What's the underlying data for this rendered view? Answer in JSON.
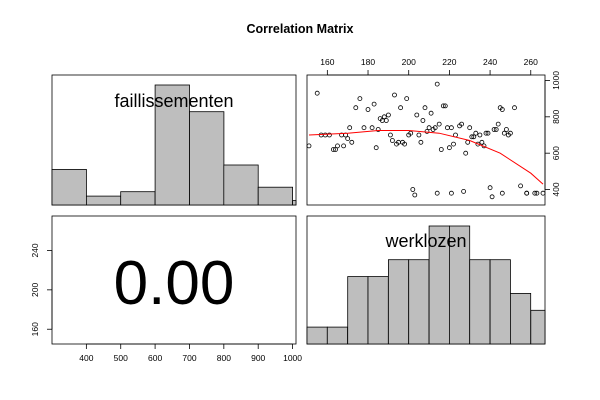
{
  "title": "Correlation Matrix",
  "chart_data": {
    "type": "pairs",
    "variables": [
      "faillissementen",
      "werklozen"
    ],
    "correlation": "0.00",
    "x_axis": {
      "ticks": [
        400,
        500,
        600,
        700,
        800,
        900,
        1000
      ],
      "range": [
        300,
        1010
      ]
    },
    "top_axis": {
      "ticks": [
        160,
        180,
        200,
        220,
        240,
        260
      ],
      "range": [
        150,
        267
      ]
    },
    "right_axis": {
      "ticks": [
        400,
        600,
        800,
        1000
      ],
      "range": [
        315,
        1030
      ]
    },
    "left_axis": {
      "ticks": [
        160,
        200,
        240
      ],
      "range": [
        145,
        275
      ]
    },
    "hist_faillissementen": {
      "breaks": [
        300,
        400,
        500,
        600,
        700,
        800,
        900,
        1000,
        1050
      ],
      "counts": [
        8,
        2,
        3,
        27,
        21,
        9,
        4,
        1
      ]
    },
    "hist_werklozen": {
      "breaks": [
        150,
        160,
        170,
        180,
        190,
        200,
        210,
        220,
        230,
        240,
        250,
        260,
        267
      ],
      "counts": [
        1,
        1,
        4,
        4,
        5,
        5,
        7,
        7,
        5,
        5,
        3,
        2
      ]
    },
    "scatter": {
      "x": [
        151,
        155,
        157,
        159,
        161,
        163,
        164,
        165,
        167,
        168,
        169,
        170,
        171,
        172,
        174,
        176,
        178,
        180,
        182,
        183,
        184,
        185,
        186,
        187,
        188,
        189,
        190,
        191,
        192,
        193,
        194,
        195,
        196,
        197,
        198,
        199,
        200,
        201,
        202,
        203,
        204,
        205,
        206,
        207,
        208,
        209,
        210,
        211,
        212,
        213,
        214,
        215,
        216,
        217,
        218,
        219,
        220,
        221,
        222,
        223,
        225,
        226,
        227,
        228,
        229,
        230,
        231,
        232,
        233,
        234,
        235,
        236,
        237,
        238,
        239,
        240,
        241,
        242,
        243,
        244,
        245,
        246,
        247,
        248,
        249,
        250,
        252,
        255,
        258,
        263,
        266,
        262,
        258,
        214,
        221,
        246
      ],
      "y": [
        640,
        930,
        700,
        700,
        700,
        620,
        620,
        640,
        700,
        640,
        700,
        680,
        740,
        660,
        850,
        900,
        740,
        840,
        740,
        870,
        630,
        730,
        790,
        780,
        800,
        780,
        810,
        700,
        670,
        920,
        650,
        660,
        850,
        660,
        650,
        900,
        700,
        710,
        400,
        370,
        810,
        700,
        660,
        780,
        850,
        720,
        740,
        820,
        730,
        740,
        980,
        760,
        620,
        860,
        860,
        740,
        630,
        740,
        650,
        700,
        750,
        760,
        390,
        600,
        660,
        740,
        690,
        690,
        710,
        650,
        700,
        660,
        640,
        710,
        710,
        410,
        360,
        730,
        730,
        760,
        850,
        840,
        710,
        730,
        700,
        710,
        850,
        420,
        380,
        380,
        380,
        380,
        380,
        380,
        380,
        380
      ],
      "smooth": {
        "x": [
          151,
          170,
          185,
          200,
          215,
          230,
          245,
          260,
          266
        ],
        "y": [
          700,
          710,
          725,
          725,
          710,
          670,
          600,
          490,
          430
        ]
      }
    }
  }
}
